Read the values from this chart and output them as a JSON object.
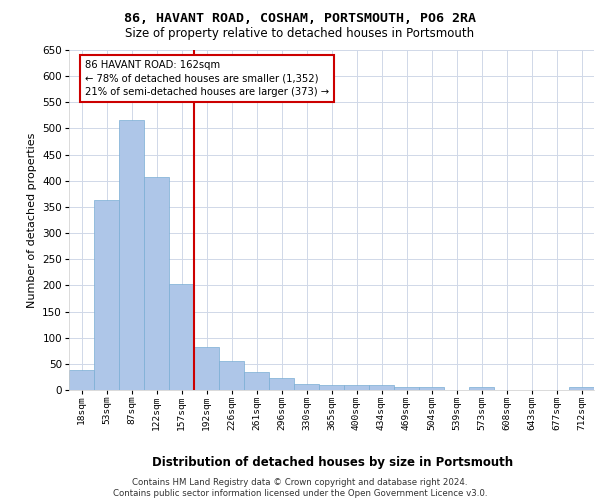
{
  "title_line1": "86, HAVANT ROAD, COSHAM, PORTSMOUTH, PO6 2RA",
  "title_line2": "Size of property relative to detached houses in Portsmouth",
  "xlabel": "Distribution of detached houses by size in Portsmouth",
  "ylabel": "Number of detached properties",
  "categories": [
    "18sqm",
    "53sqm",
    "87sqm",
    "122sqm",
    "157sqm",
    "192sqm",
    "226sqm",
    "261sqm",
    "296sqm",
    "330sqm",
    "365sqm",
    "400sqm",
    "434sqm",
    "469sqm",
    "504sqm",
    "539sqm",
    "573sqm",
    "608sqm",
    "643sqm",
    "677sqm",
    "712sqm"
  ],
  "values": [
    38,
    363,
    517,
    408,
    202,
    82,
    55,
    35,
    22,
    12,
    10,
    10,
    9,
    5,
    5,
    0,
    5,
    0,
    0,
    0,
    5
  ],
  "bar_color": "#aec6e8",
  "bar_edge_color": "#7aadd4",
  "grid_color": "#d0d8e8",
  "annotation_text_line1": "86 HAVANT ROAD: 162sqm",
  "annotation_text_line2": "← 78% of detached houses are smaller (1,352)",
  "annotation_text_line3": "21% of semi-detached houses are larger (373) →",
  "annotation_box_color": "#ffffff",
  "annotation_box_edge_color": "#cc0000",
  "vline_color": "#cc0000",
  "ylim": [
    0,
    650
  ],
  "yticks": [
    0,
    50,
    100,
    150,
    200,
    250,
    300,
    350,
    400,
    450,
    500,
    550,
    600,
    650
  ],
  "footer_line1": "Contains HM Land Registry data © Crown copyright and database right 2024.",
  "footer_line2": "Contains public sector information licensed under the Open Government Licence v3.0.",
  "background_color": "#ffffff"
}
